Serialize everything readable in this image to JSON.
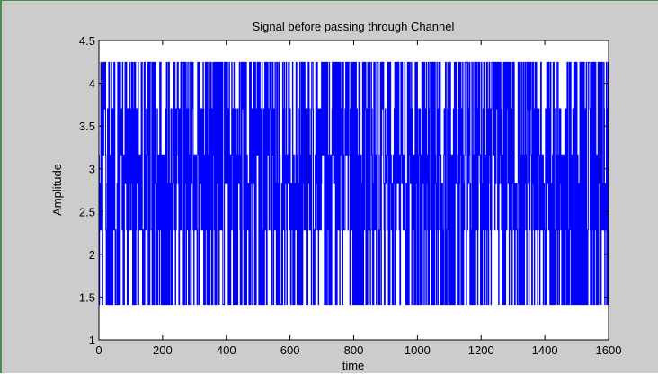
{
  "chart_data": {
    "type": "line",
    "title": "Signal before passing through Channel",
    "xlabel": "time",
    "ylabel": "Amplitude",
    "xlim": [
      0,
      1600
    ],
    "ylim": [
      1,
      4.5
    ],
    "xticks": [
      0,
      200,
      400,
      600,
      800,
      1000,
      1200,
      1400,
      1600
    ],
    "xtick_labels": [
      "0",
      "200",
      "400",
      "600",
      "800",
      "1000",
      "1200",
      "1400",
      "1600"
    ],
    "yticks": [
      1,
      1.5,
      2,
      2.5,
      3,
      3.5,
      4,
      4.5
    ],
    "ytick_labels": [
      "1",
      "1.5",
      "2",
      "2.5",
      "3",
      "3.5",
      "4",
      "4.5"
    ],
    "grid": false,
    "series": [
      {
        "color": "#0000ff",
        "levels": [
          1.414,
          2.285,
          2.828,
          3.162,
          3.7,
          4.243
        ],
        "x_range": [
          0,
          1600
        ]
      }
    ]
  },
  "colors": {
    "figure_background": "#cccccc",
    "axes_background": "#ffffff",
    "line": "#0000ff"
  }
}
